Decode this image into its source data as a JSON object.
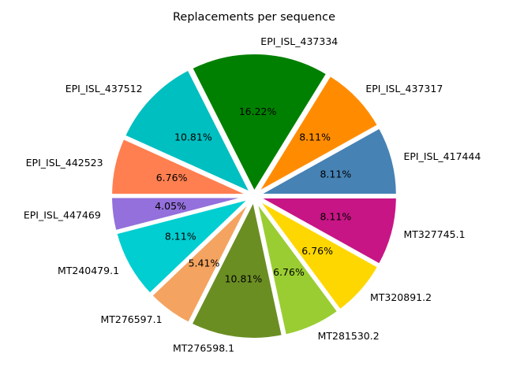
{
  "chart_data": {
    "type": "pie",
    "title": "Replacements per sequence",
    "start_angle_deg": 0,
    "direction": "counterclockwise",
    "slices": [
      {
        "label": "EPI_ISL_417444",
        "pct": "8.11%",
        "value": 8.11,
        "color": "#4682b4"
      },
      {
        "label": "EPI_ISL_437317",
        "pct": "8.11%",
        "value": 8.11,
        "color": "#ff8c00"
      },
      {
        "label": "EPI_ISL_437334",
        "pct": "16.22%",
        "value": 16.22,
        "color": "#008000"
      },
      {
        "label": "EPI_ISL_437512",
        "pct": "10.81%",
        "value": 10.81,
        "color": "#00bfc0"
      },
      {
        "label": "EPI_ISL_442523",
        "pct": "6.76%",
        "value": 6.76,
        "color": "#ff7f50"
      },
      {
        "label": "EPI_ISL_447469",
        "pct": "4.05%",
        "value": 4.05,
        "color": "#9370db"
      },
      {
        "label": "MT240479.1",
        "pct": "8.11%",
        "value": 8.11,
        "color": "#00ced1"
      },
      {
        "label": "MT276597.1",
        "pct": "5.41%",
        "value": 5.41,
        "color": "#f4a460"
      },
      {
        "label": "MT276598.1",
        "pct": "10.81%",
        "value": 10.81,
        "color": "#6b8e23"
      },
      {
        "label": "MT281530.2",
        "pct": "6.76%",
        "value": 6.76,
        "color": "#9acd32"
      },
      {
        "label": "MT320891.2",
        "pct": "6.76%",
        "value": 6.76,
        "color": "#ffd700"
      },
      {
        "label": "MT327745.1",
        "pct": "8.11%",
        "value": 8.11,
        "color": "#c71585"
      }
    ]
  }
}
